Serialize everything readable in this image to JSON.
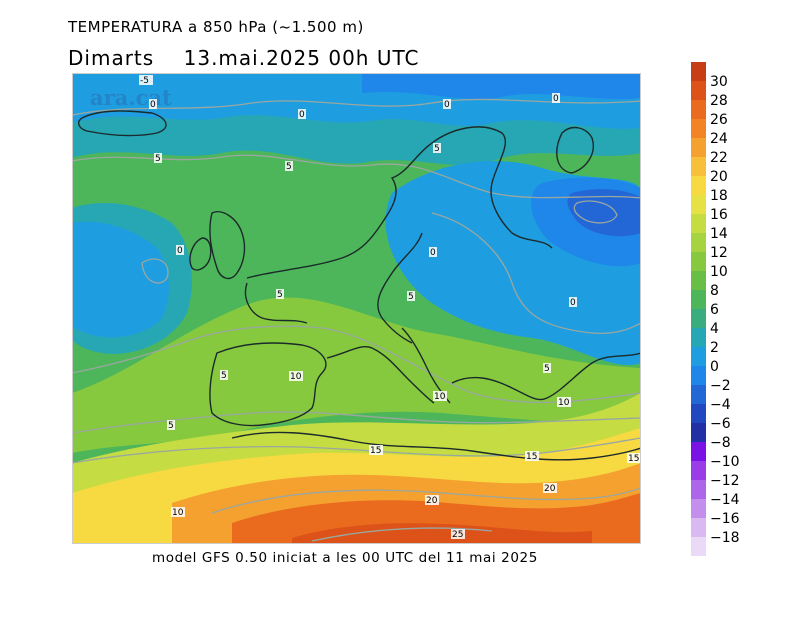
{
  "header": {
    "title": "TEMPERATURA a 850 hPa (~1.500 m)",
    "day": "Dimarts",
    "datetime": "13.mai.2025 00h UTC"
  },
  "watermark": "ara.cat",
  "footer": "model GFS 0.50 iniciat a les 00 UTC del 11 mai 2025",
  "legend": {
    "levels": [
      {
        "label": "30",
        "color": "#c73d16"
      },
      {
        "label": "28",
        "color": "#dd5218"
      },
      {
        "label": "26",
        "color": "#ea6a1e"
      },
      {
        "label": "24",
        "color": "#f28425"
      },
      {
        "label": "22",
        "color": "#f5a12f"
      },
      {
        "label": "20",
        "color": "#f8c03a"
      },
      {
        "label": "18",
        "color": "#f7da42"
      },
      {
        "label": "16",
        "color": "#e6e145"
      },
      {
        "label": "14",
        "color": "#c5dc43"
      },
      {
        "label": "12",
        "color": "#a6d340"
      },
      {
        "label": "10",
        "color": "#86c93f"
      },
      {
        "label": "8",
        "color": "#69bf45"
      },
      {
        "label": "6",
        "color": "#4eb65a"
      },
      {
        "label": "4",
        "color": "#3aad7f"
      },
      {
        "label": "2",
        "color": "#27a7b4"
      },
      {
        "label": "0",
        "color": "#1e9ee0"
      },
      {
        "label": "−2",
        "color": "#1f86ea"
      },
      {
        "label": "−4",
        "color": "#2367d6"
      },
      {
        "label": "−6",
        "color": "#2148be"
      },
      {
        "label": "−8",
        "color": "#2230a6"
      },
      {
        "label": "−10",
        "color": "#7a12e6"
      },
      {
        "label": "−12",
        "color": "#9a3de8"
      },
      {
        "label": "−14",
        "color": "#ad66ea"
      },
      {
        "label": "−16",
        "color": "#c48fec"
      },
      {
        "label": "−18",
        "color": "#dab9f2"
      }
    ],
    "bottom_color": "#ead9f7"
  },
  "contour_labels": [
    {
      "text": "-5"
    },
    {
      "text": "0"
    },
    {
      "text": "0"
    },
    {
      "text": "0"
    },
    {
      "text": "0"
    },
    {
      "text": "5"
    },
    {
      "text": "5"
    },
    {
      "text": "5"
    },
    {
      "text": "0"
    },
    {
      "text": "0"
    },
    {
      "text": "0"
    },
    {
      "text": "5"
    },
    {
      "text": "5"
    },
    {
      "text": "5"
    },
    {
      "text": "10"
    },
    {
      "text": "10"
    },
    {
      "text": "5"
    },
    {
      "text": "10"
    },
    {
      "text": "5"
    },
    {
      "text": "15"
    },
    {
      "text": "15"
    },
    {
      "text": "20"
    },
    {
      "text": "15"
    },
    {
      "text": "20"
    },
    {
      "text": "25"
    },
    {
      "text": "10"
    }
  ]
}
